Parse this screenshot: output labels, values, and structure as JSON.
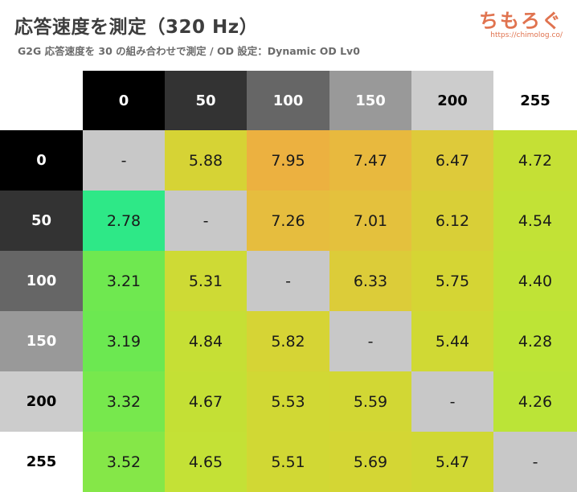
{
  "header": {
    "title": "応答速度を測定（320 Hz）",
    "subtitle": "G2G 応答速度を 30 の組み合わせで測定 / OD 設定：Dynamic OD Lv0",
    "logo_text": "ちもろぐ",
    "logo_url": "https://chimolog.co/"
  },
  "chart_data": {
    "type": "heatmap",
    "columns": [
      "0",
      "50",
      "100",
      "150",
      "200",
      "255"
    ],
    "rows": [
      "0",
      "50",
      "100",
      "150",
      "200",
      "255"
    ],
    "values": [
      [
        "-",
        "5.88",
        "7.95",
        "7.47",
        "6.47",
        "4.72"
      ],
      [
        "2.78",
        "-",
        "7.26",
        "7.01",
        "6.12",
        "4.54"
      ],
      [
        "3.21",
        "5.31",
        "-",
        "6.33",
        "5.75",
        "4.40"
      ],
      [
        "3.19",
        "4.84",
        "5.82",
        "-",
        "5.44",
        "4.28"
      ],
      [
        "3.32",
        "4.67",
        "5.53",
        "5.59",
        "-",
        "4.26"
      ],
      [
        "3.52",
        "4.65",
        "5.51",
        "5.69",
        "5.47",
        "-"
      ]
    ],
    "header_colors": [
      "#000000",
      "#333333",
      "#666666",
      "#999999",
      "#cccccc",
      "#ffffff"
    ],
    "header_text_colors": [
      "#ffffff",
      "#ffffff",
      "#ffffff",
      "#ffffff",
      "#000000",
      "#000000"
    ],
    "diagonal_color": "#c8c8c8"
  }
}
